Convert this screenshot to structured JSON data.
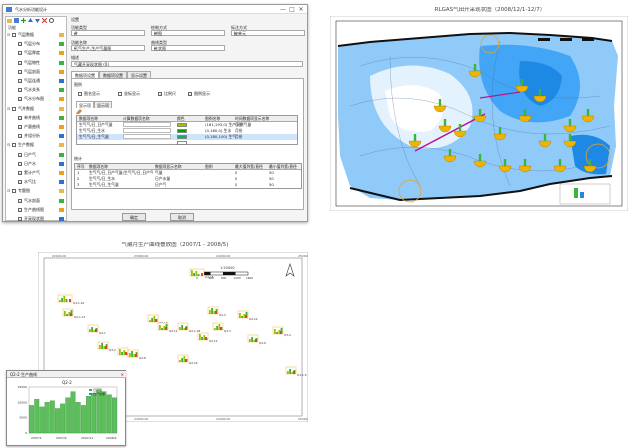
{
  "dialog": {
    "title": "气水分析功能设计",
    "window_buttons": [
      "—",
      "□",
      "✕"
    ],
    "toolbar_icons": [
      "folder-icon",
      "save-icon",
      "add-icon",
      "move-up-icon",
      "move-down-icon",
      "delete-icon",
      "settings-icon"
    ],
    "tree": {
      "header": "功能",
      "items": [
        {
          "label": "气层数据",
          "level": 0,
          "expand": "⊟",
          "checked": false,
          "icon": "folder"
        },
        {
          "label": "气层分布",
          "level": 1,
          "checked": true,
          "icon": "green"
        },
        {
          "label": "气层厚度",
          "level": 1,
          "checked": true,
          "icon": "orange"
        },
        {
          "label": "气层物性",
          "level": 1,
          "checked": true,
          "icon": "green"
        },
        {
          "label": "气层剖面",
          "level": 1,
          "checked": true,
          "icon": "orange"
        },
        {
          "label": "气层连通",
          "level": 1,
          "checked": true,
          "icon": "blue"
        },
        {
          "label": "气水关系",
          "level": 1,
          "checked": true,
          "icon": "green"
        },
        {
          "label": "气水分布图",
          "level": 1,
          "checked": true,
          "icon": "orange"
        },
        {
          "label": "气井数据",
          "level": 0,
          "expand": "⊟",
          "checked": false,
          "icon": "folder"
        },
        {
          "label": "单井曲线",
          "level": 1,
          "checked": true,
          "icon": "green"
        },
        {
          "label": "产量曲线",
          "level": 1,
          "checked": true,
          "icon": "orange"
        },
        {
          "label": "井组分析",
          "level": 1,
          "checked": true,
          "icon": "blue"
        },
        {
          "label": "生产数据",
          "level": 0,
          "expand": "⊟",
          "checked": false,
          "icon": "folder"
        },
        {
          "label": "日产气",
          "level": 1,
          "checked": true,
          "icon": "green"
        },
        {
          "label": "日产水",
          "level": 1,
          "checked": true,
          "icon": "blue"
        },
        {
          "label": "累计产气",
          "level": 1,
          "checked": true,
          "icon": "orange"
        },
        {
          "label": "水气比",
          "level": 1,
          "checked": true,
          "icon": "blue"
        },
        {
          "label": "专题图",
          "level": 0,
          "expand": "⊟",
          "checked": false,
          "icon": "folder"
        },
        {
          "label": "气水剖面",
          "level": 1,
          "checked": true,
          "icon": "green"
        },
        {
          "label": "生产曲线图",
          "level": 1,
          "checked": true,
          "icon": "orange"
        },
        {
          "label": "开采现状图",
          "level": 1,
          "checked": true,
          "icon": "blue"
        }
      ]
    },
    "settings_header": "设置",
    "fields": [
      {
        "label": "功能类型",
        "value": "井",
        "col": 0,
        "row": 0
      },
      {
        "label": "绘制方式",
        "value": "饼图",
        "col": 1,
        "row": 0
      },
      {
        "label": "标注方式",
        "value": "按单元",
        "col": 2,
        "row": 0
      },
      {
        "label": "功能名称",
        "value": "气气生产,生产气量图",
        "col": 0,
        "row": 1
      },
      {
        "label": "曲线类型",
        "value": "柱状图",
        "col": 1,
        "row": 1
      }
    ],
    "desc_label": "描述",
    "desc_value": "气藏开采现状图  (0)",
    "tabs": [
      "数据项设置",
      "数据项设置",
      "显示设置"
    ],
    "group_label": "图例",
    "checks": [
      {
        "label": "图名显示",
        "checked": false
      },
      {
        "label": "坐标显示",
        "checked": false
      },
      {
        "label": "比例尺",
        "checked": true
      },
      {
        "label": "图例显示",
        "checked": true
      }
    ],
    "subtabs": [
      "显示项",
      "显示项"
    ],
    "grid1": {
      "headers": [
        "数据项名称",
        "计算数据项名称",
        "颜色",
        "图例名称",
        "时间数据项显示名称"
      ],
      "rows": [
        [
          "生气气/日_日产气量",
          "",
          "",
          "(161,193,0) 生产天然气量",
          "月份"
        ],
        [
          "生气气/日_生水",
          "",
          "",
          "(0,160,0) 生水",
          "月份"
        ],
        [
          "生气气/日_生气量",
          "",
          "",
          "(0,180,100) 生气",
          "月份"
        ],
        [
          "",
          "",
          "",
          "",
          ""
        ]
      ],
      "colors": [
        "#a1c100",
        "#00a000",
        "#00b464",
        "#ffffff"
      ]
    },
    "grid2_label": "统计",
    "grid2": {
      "headers": [
        "序号",
        "数据项名称",
        "数据项显示名称",
        "图例",
        "最大值列宽/直径",
        "最小值列宽/直径"
      ],
      "rows": [
        [
          "1",
          "生气气/日_日产气量(生气气/日_日产气量)",
          "气量",
          "",
          "0",
          "50"
        ],
        [
          "2",
          "生气气/日_生水",
          "日产水量",
          "",
          "0",
          "50"
        ],
        [
          "3",
          "生气气/日_生气量",
          "日产气",
          "",
          "0",
          "50"
        ]
      ]
    },
    "buttons": {
      "ok": "确定",
      "cancel": "取消"
    }
  },
  "right_map": {
    "title": "RLGAS气田开采现状图（2008/12/1-12/7）",
    "colors": {
      "deep": "#1e88e5",
      "mid": "#64b5f6",
      "light": "#bbdefb",
      "pale": "#e3f2fd",
      "outline": "#111111",
      "pie_yellow": "#f0b400",
      "pie_green": "#3cb43c",
      "fault": "#b5178e"
    }
  },
  "well_map": {
    "title": "气藏月生产曲线叠放图（2007/1 - 2008/5)",
    "north_icon": "north-arrow-icon",
    "scale_label": "1:20000",
    "scale_ticks": [
      "0",
      "400",
      "800",
      "1200",
      "1600"
    ],
    "top_coords": [
      "22000.00",
      "23000.00",
      "24000.00",
      "25000.00"
    ],
    "bottom_coords": [
      "22000.00",
      "23000.00",
      "24000.00",
      "25000.00"
    ],
    "wells": [
      {
        "name": "Q3-1-10",
        "type": "wide"
      },
      {
        "name": "Q2-1-13",
        "type": "small"
      },
      {
        "name": "Q2-1",
        "type": "small"
      },
      {
        "name": "Q2-15",
        "type": "wide"
      },
      {
        "name": "Q3-2",
        "type": "small"
      },
      {
        "name": "Q2-10",
        "type": "small"
      },
      {
        "name": "Q2-11",
        "type": "small"
      },
      {
        "name": "Q2-1-18",
        "type": "small"
      },
      {
        "name": "Q2-12",
        "type": "small"
      },
      {
        "name": "Q2-3",
        "type": "small"
      },
      {
        "name": "Q3-3",
        "type": "small"
      },
      {
        "name": "Q2-14",
        "type": "small"
      },
      {
        "name": "Q2-6",
        "type": "small"
      },
      {
        "name": "Q3-1",
        "type": "small"
      },
      {
        "name": "Q2-8",
        "type": "small"
      },
      {
        "name": "Q2-16",
        "type": "small"
      },
      {
        "name": "Q3-4",
        "type": "small"
      },
      {
        "name": "Q3-1-5",
        "type": "small"
      }
    ]
  },
  "popup": {
    "title": "Q2-2 生产曲线",
    "chart_title": "Q2-2",
    "legend": [
      "日产气",
      "日产水量"
    ],
    "x_ticks": [
      "2007/1",
      "2007/6",
      "2007/11",
      "2008/4"
    ],
    "y_ticks": [
      "0",
      "5000",
      "10000",
      "15000"
    ],
    "close_icon": "close-icon",
    "chart_data": {
      "type": "bar",
      "categories": [
        "2007/1",
        "2007/2",
        "2007/3",
        "2007/4",
        "2007/5",
        "2007/6",
        "2007/7",
        "2007/8",
        "2007/9",
        "2007/10",
        "2007/11",
        "2007/12",
        "2008/1",
        "2008/2",
        "2008/3",
        "2008/4",
        "2008/5"
      ],
      "series": [
        {
          "name": "日产气",
          "values": [
            9000,
            11000,
            8500,
            10000,
            10500,
            8000,
            9500,
            11500,
            13500,
            10000,
            9000,
            12000,
            13000,
            14000,
            13500,
            12500,
            11500
          ]
        }
      ],
      "ylim": [
        0,
        15000
      ]
    }
  }
}
